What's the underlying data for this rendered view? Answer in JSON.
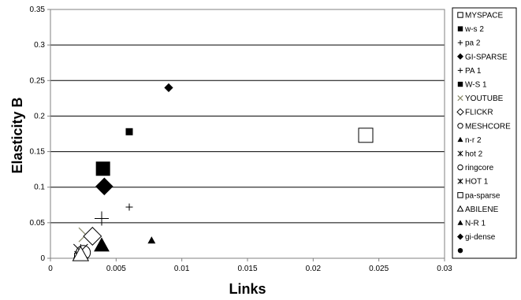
{
  "chart_data": {
    "type": "scatter",
    "title": "",
    "xlabel": "Links",
    "ylabel": "Elasticity B",
    "xlim": [
      0,
      0.03
    ],
    "ylim": [
      0,
      0.35
    ],
    "x_ticks": [
      "0",
      "0.005",
      "0.01",
      "0.015",
      "0.02",
      "0.025",
      "0.03"
    ],
    "y_ticks": [
      "0",
      "0.05",
      "0.1",
      "0.15",
      "0.2",
      "0.25",
      "0.3",
      "0.35"
    ],
    "grid": "horizontal",
    "legend_position": "right",
    "series": [
      {
        "name": "MYSPACE",
        "marker": "square-open",
        "size": "large",
        "points": [
          [
            0.024,
            0.173
          ]
        ]
      },
      {
        "name": "w-s 2",
        "marker": "square",
        "size": "small",
        "points": [
          [
            0.006,
            0.178
          ]
        ]
      },
      {
        "name": "pa 2",
        "marker": "plus",
        "size": "small",
        "points": [
          [
            0.006,
            0.072
          ]
        ]
      },
      {
        "name": "GI-SPARSE",
        "marker": "diamond",
        "size": "small",
        "points": [
          [
            0.009,
            0.24
          ]
        ]
      },
      {
        "name": "PA 1",
        "marker": "plus",
        "size": "large",
        "points": [
          [
            0.0039,
            0.056
          ]
        ]
      },
      {
        "name": "W-S 1",
        "marker": "square",
        "size": "large",
        "points": [
          [
            0.004,
            0.126
          ]
        ]
      },
      {
        "name": "YOUTUBE",
        "marker": "x",
        "size": "large",
        "points": [
          [
            0.0027,
            0.033
          ]
        ]
      },
      {
        "name": "FLICKR",
        "marker": "diamond-open",
        "size": "large",
        "points": [
          [
            0.0032,
            0.031
          ]
        ]
      },
      {
        "name": "MESHCORE",
        "marker": "circle-open",
        "size": "small",
        "points": [
          [
            0.0022,
            0.008
          ]
        ]
      },
      {
        "name": "n-r 2",
        "marker": "triangle",
        "size": "small",
        "points": [
          [
            0.0077,
            0.025
          ]
        ]
      },
      {
        "name": "hot 2",
        "marker": "star",
        "size": "small",
        "points": [
          [
            0.0021,
            0.005
          ]
        ]
      },
      {
        "name": "ringcore",
        "marker": "circle-open",
        "size": "large",
        "points": [
          [
            0.0025,
            0.008
          ]
        ]
      },
      {
        "name": "HOT 1",
        "marker": "star",
        "size": "large",
        "points": [
          [
            0.0023,
            0.01
          ]
        ]
      },
      {
        "name": "pa-sparse",
        "marker": "square-open",
        "size": "small",
        "points": [
          [
            0.0021,
            0.002
          ]
        ]
      },
      {
        "name": "ABILENE",
        "marker": "triangle-open",
        "size": "large",
        "points": [
          [
            0.0023,
            0.005
          ]
        ]
      },
      {
        "name": "N-R 1",
        "marker": "triangle",
        "size": "large",
        "points": [
          [
            0.0039,
            0.018
          ]
        ]
      },
      {
        "name": "gi-dense",
        "marker": "diamond",
        "size": "large",
        "points": [
          [
            0.0041,
            0.101
          ]
        ]
      },
      {
        "name": "",
        "marker": "circle",
        "size": "small",
        "points": []
      }
    ]
  }
}
